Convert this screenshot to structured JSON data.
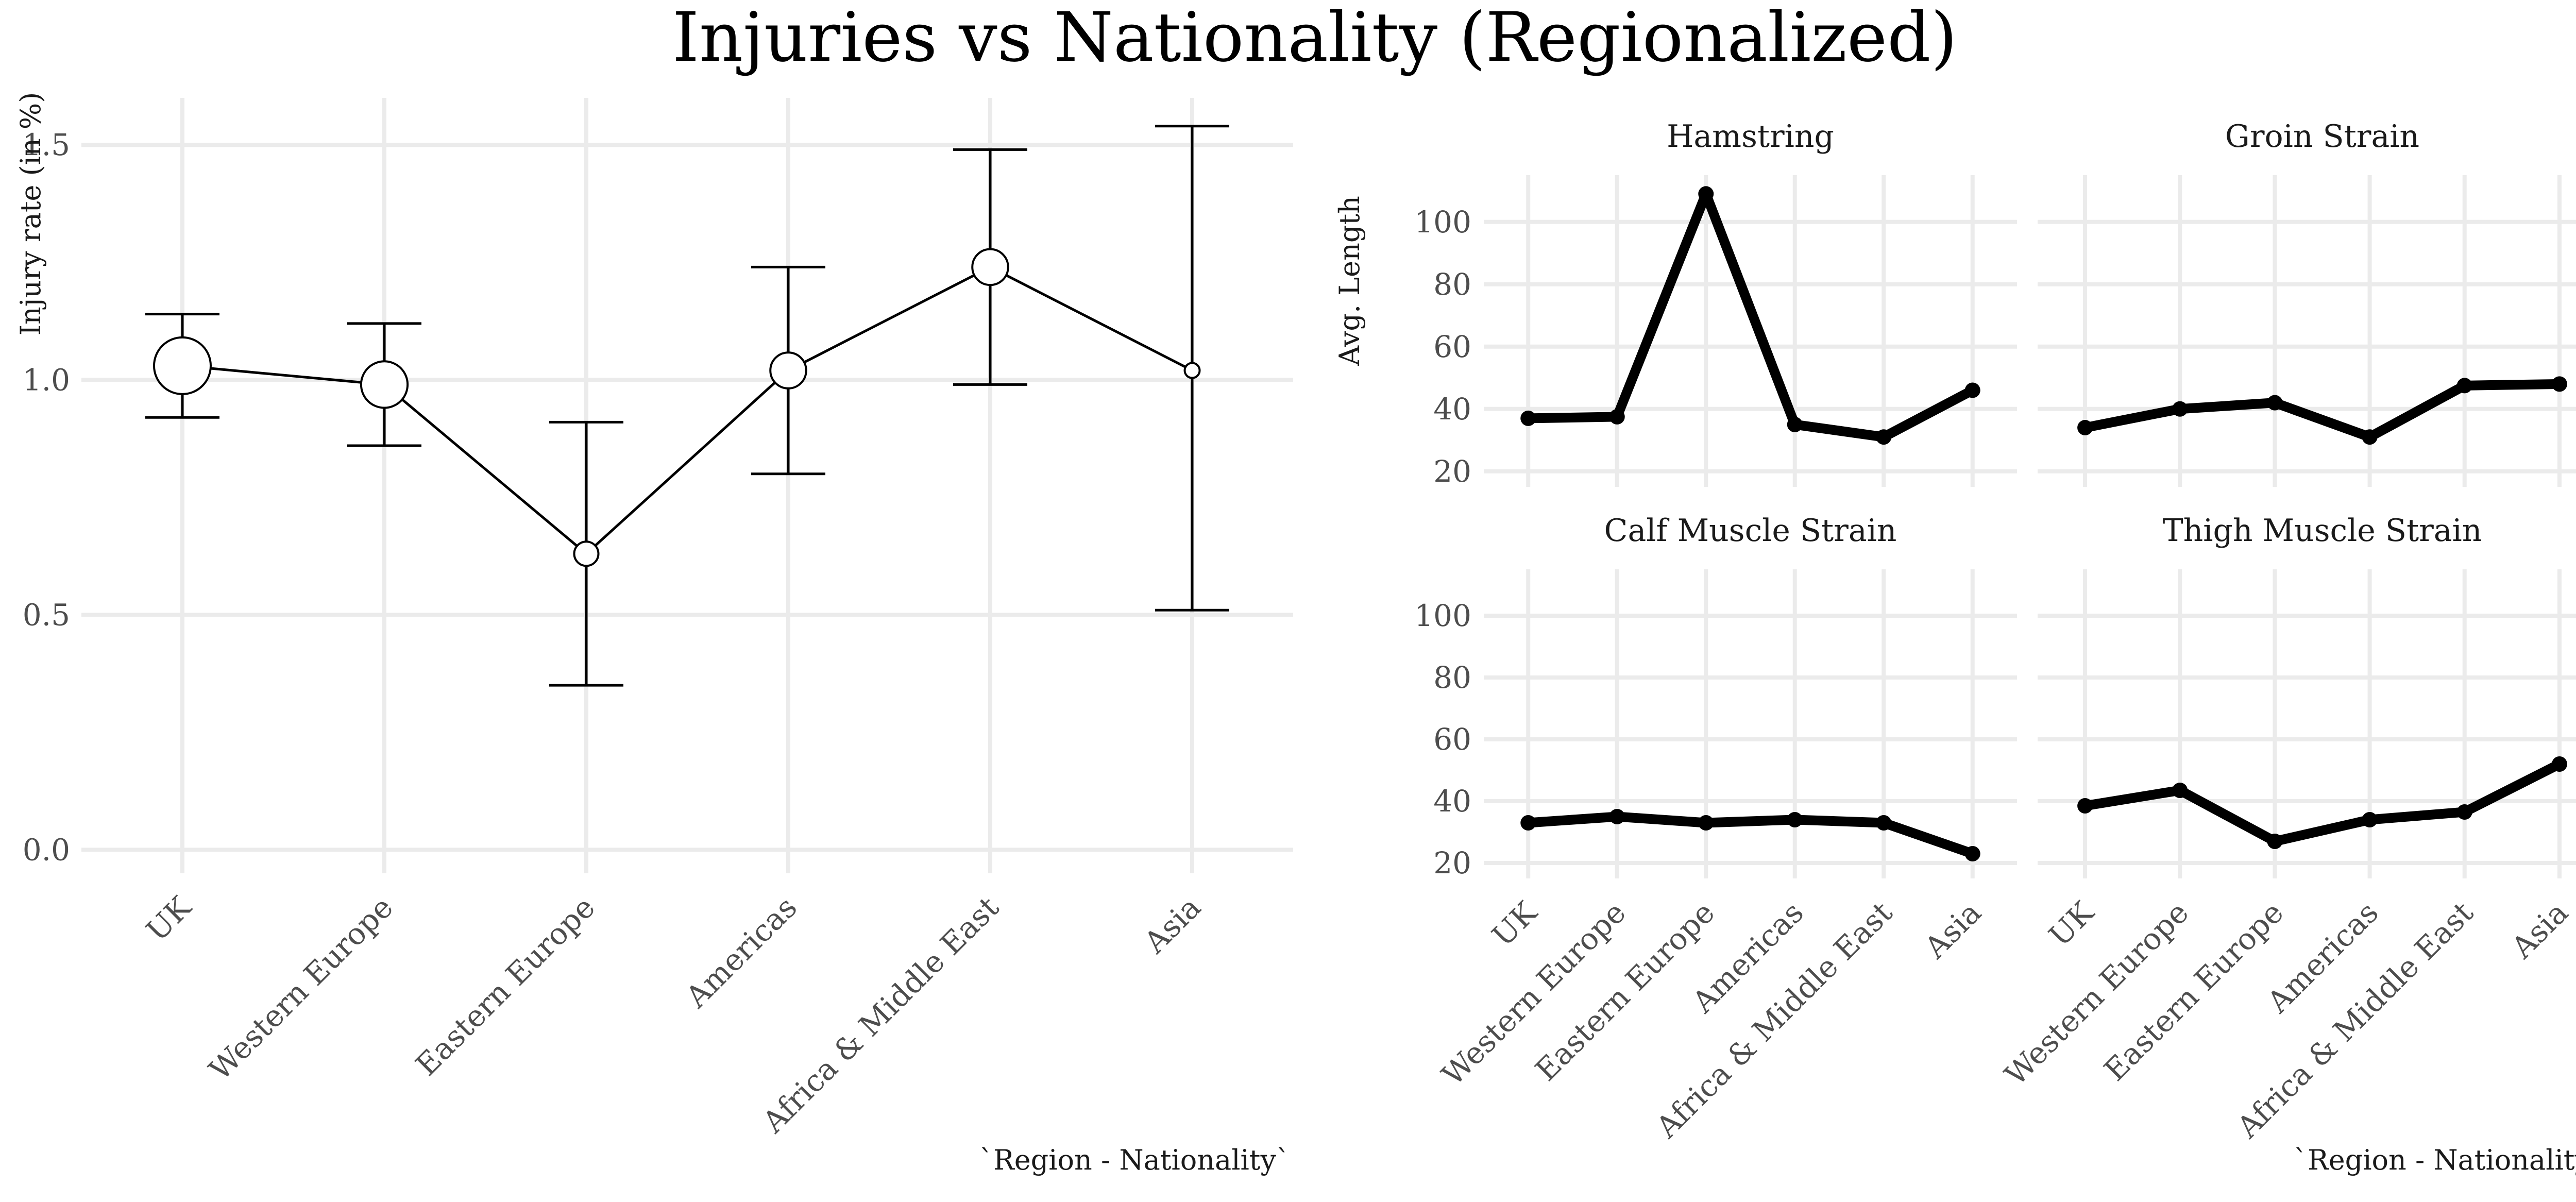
{
  "title": "Injuries vs Nationality (Regionalized)",
  "chart_data": [
    {
      "type": "line",
      "variant": "point-errorbar",
      "title": "",
      "xlabel": "`Region - Nationality`",
      "ylabel": "Injury rate (in %)",
      "categories": [
        "UK",
        "Western Europe",
        "Eastern Europe",
        "Americas",
        "Africa & Middle East",
        "Asia"
      ],
      "ylim": [
        -0.05,
        1.6
      ],
      "yticks": [
        0.0,
        0.5,
        1.0,
        1.5
      ],
      "ytick_labels": [
        "0.0",
        "0.5",
        "1.0",
        "1.5"
      ],
      "grid": true,
      "series": [
        {
          "values": [
            1.03,
            0.99,
            0.63,
            1.02,
            1.24,
            1.02
          ],
          "lower": [
            0.92,
            0.86,
            0.35,
            0.8,
            0.99,
            0.51
          ],
          "upper": [
            1.14,
            1.12,
            0.91,
            1.24,
            1.49,
            1.54
          ],
          "point_weight": [
            1.0,
            0.78,
            0.3,
            0.55,
            0.55,
            0.1
          ]
        }
      ]
    },
    {
      "type": "line",
      "variant": "facets",
      "xlabel": "`Region - Nationality`",
      "ylabel": "Avg. Length",
      "categories": [
        "UK",
        "Western Europe",
        "Eastern Europe",
        "Americas",
        "Africa & Middle East",
        "Asia"
      ],
      "ylim": [
        15,
        115
      ],
      "yticks": [
        20,
        40,
        60,
        80,
        100
      ],
      "ytick_labels": [
        "20",
        "40",
        "60",
        "80",
        "100"
      ],
      "grid": true,
      "facets": [
        {
          "name": "Hamstring",
          "values": [
            37,
            37.5,
            109,
            35,
            31,
            46
          ]
        },
        {
          "name": "Groin Strain",
          "values": [
            34,
            40,
            42,
            31,
            47.5,
            48
          ]
        },
        {
          "name": "Calf Muscle Strain",
          "values": [
            33,
            35,
            33,
            34,
            33,
            23
          ]
        },
        {
          "name": "Thigh Muscle Strain",
          "values": [
            38.5,
            43.5,
            27,
            34,
            36.5,
            52
          ]
        }
      ]
    }
  ]
}
